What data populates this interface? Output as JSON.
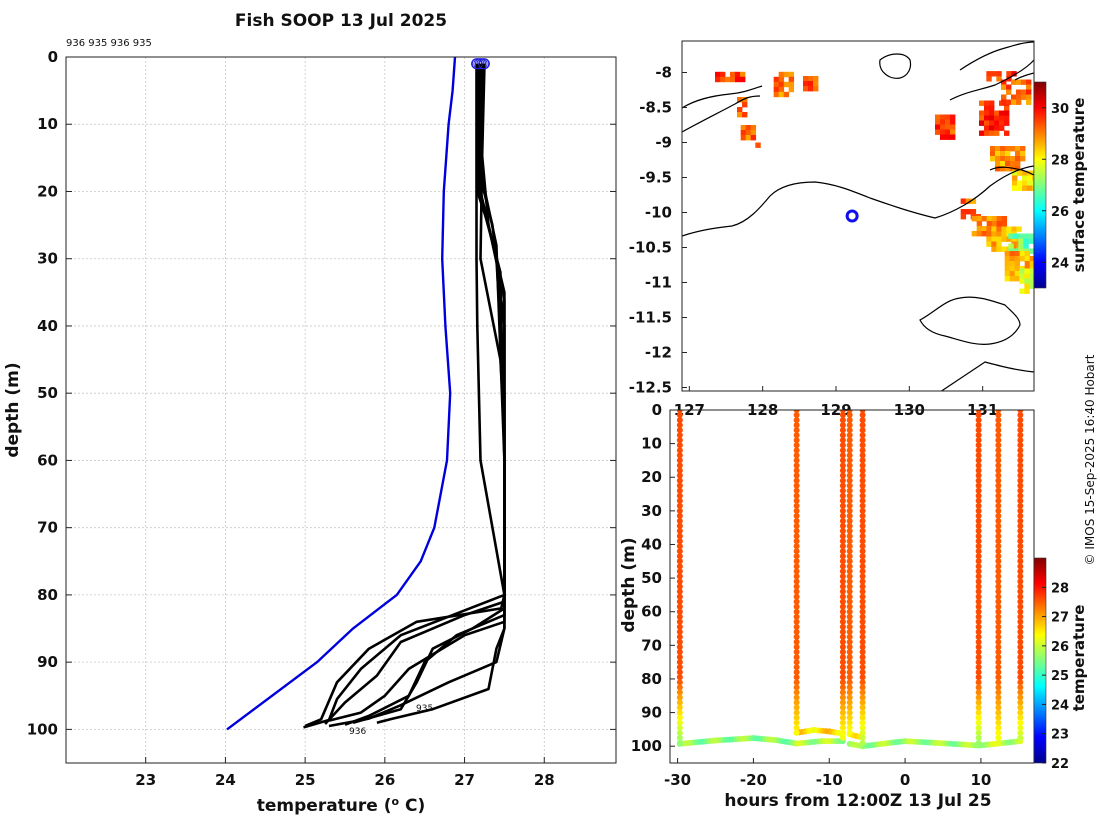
{
  "credit": "© IMOS 15-Sep-2025 16:40 Hobart",
  "chart_data": [
    {
      "id": "profile",
      "type": "line",
      "title": "Fish SOOP 13 Jul 2025",
      "header_ids": "936 935 936 935",
      "xlabel": "temperature (° C)",
      "xlabel_pre": "temperature (",
      "xlabel_sup": "o",
      "xlabel_post": " C)",
      "ylabel": "depth (m)",
      "xlim": [
        22,
        28.9
      ],
      "ylim": [
        0,
        105
      ],
      "xticks": [
        23,
        24,
        25,
        26,
        27,
        28
      ],
      "yticks": [
        0,
        10,
        20,
        30,
        40,
        50,
        60,
        70,
        80,
        90,
        100
      ],
      "grid": true,
      "climatology": {
        "name": "climatology",
        "color": "#0000dd",
        "points": [
          [
            26.88,
            0
          ],
          [
            26.85,
            5
          ],
          [
            26.8,
            10
          ],
          [
            26.74,
            20
          ],
          [
            26.72,
            30
          ],
          [
            26.76,
            40
          ],
          [
            26.82,
            50
          ],
          [
            26.78,
            60
          ],
          [
            26.62,
            70
          ],
          [
            26.45,
            75
          ],
          [
            26.15,
            80
          ],
          [
            25.6,
            85
          ],
          [
            25.15,
            90
          ],
          [
            24.02,
            100
          ]
        ]
      },
      "profiles": [
        {
          "id": "p1",
          "points": [
            [
              27.15,
              1
            ],
            [
              27.15,
              10
            ],
            [
              27.15,
              20
            ],
            [
              27.15,
              30
            ],
            [
              27.16,
              40
            ],
            [
              27.2,
              60
            ],
            [
              27.5,
              80
            ],
            [
              27.46,
              82
            ],
            [
              26.4,
              84
            ],
            [
              25.8,
              88
            ],
            [
              25.4,
              93
            ],
            [
              25.2,
              98.5
            ],
            [
              25.0,
              99.5
            ]
          ]
        },
        {
          "id": "p2",
          "points": [
            [
              27.2,
              1
            ],
            [
              27.2,
              12
            ],
            [
              27.3,
              25
            ],
            [
              27.5,
              35
            ],
            [
              27.5,
              80
            ],
            [
              26.2,
              86
            ],
            [
              25.7,
              91
            ],
            [
              25.4,
              95.5
            ],
            [
              25.3,
              98.6
            ],
            [
              24.98,
              99.7
            ]
          ]
        },
        {
          "id": "p3",
          "points": [
            [
              27.25,
              1
            ],
            [
              27.22,
              15
            ],
            [
              27.2,
              30
            ],
            [
              27.45,
              45
            ],
            [
              27.5,
              55
            ],
            [
              27.5,
              81
            ],
            [
              27.0,
              83
            ],
            [
              26.2,
              87
            ],
            [
              25.9,
              92
            ],
            [
              25.5,
              96
            ],
            [
              25.25,
              99.2
            ]
          ]
        },
        {
          "id": "p4",
          "points": [
            [
              27.18,
              1
            ],
            [
              27.18,
              17
            ],
            [
              27.35,
              25
            ],
            [
              27.5,
              40
            ],
            [
              27.5,
              84
            ],
            [
              27.0,
              86
            ],
            [
              26.3,
              91
            ],
            [
              26.0,
              95
            ],
            [
              25.7,
              97.5
            ],
            [
              25.3,
              98.7
            ]
          ]
        },
        {
          "id": "p5",
          "points": [
            [
              27.22,
              1
            ],
            [
              27.22,
              18
            ],
            [
              27.4,
              28
            ],
            [
              27.5,
              60
            ],
            [
              27.5,
              83
            ],
            [
              26.9,
              86
            ],
            [
              26.5,
              90
            ],
            [
              26.3,
              95
            ],
            [
              25.8,
              98
            ],
            [
              25.5,
              99.3
            ]
          ]
        },
        {
          "id": "p6",
          "points": [
            [
              27.2,
              1
            ],
            [
              27.18,
              20
            ],
            [
              27.45,
              32
            ],
            [
              27.5,
              60
            ],
            [
              27.5,
              82
            ],
            [
              27.1,
              85
            ],
            [
              26.6,
              88
            ],
            [
              26.4,
              93
            ],
            [
              26.2,
              97
            ],
            [
              25.6,
              99
            ]
          ]
        },
        {
          "id": "p7",
          "points": [
            [
              27.16,
              1
            ],
            [
              27.16,
              20
            ],
            [
              27.3,
              25
            ],
            [
              27.5,
              36
            ],
            [
              27.5,
              85
            ],
            [
              27.4,
              88
            ],
            [
              27.3,
              94
            ],
            [
              26.6,
              97
            ],
            [
              26.1,
              98.4
            ],
            [
              25.9,
              99
            ]
          ]
        },
        {
          "id": "p8",
          "points": [
            [
              27.24,
              1
            ],
            [
              27.22,
              10
            ],
            [
              27.2,
              20
            ],
            [
              27.4,
              30
            ],
            [
              27.5,
              50
            ],
            [
              27.5,
              85
            ],
            [
              27.4,
              90
            ],
            [
              26.8,
              93
            ],
            [
              26.2,
              96.4
            ],
            [
              25.8,
              98.4
            ],
            [
              25.3,
              99.5
            ]
          ]
        }
      ],
      "drop_labels": [
        "935",
        "936"
      ]
    },
    {
      "id": "map",
      "type": "heatmap",
      "xlim": [
        126.9,
        131.7
      ],
      "ylim": [
        -12.55,
        -7.55
      ],
      "xticks": [
        127,
        128,
        129,
        130,
        131
      ],
      "xtick_labels": [
        "127",
        "128",
        "129",
        "130",
        "131"
      ],
      "yticks": [
        -8,
        -8.5,
        -9,
        -9.5,
        -10,
        -10.5,
        -11,
        -11.5,
        -12,
        -12.5
      ],
      "ytick_labels": [
        "-8",
        "-8.5",
        "-9",
        "-9.5",
        "-10",
        "-10.5",
        "-11",
        "-11.5",
        "-12",
        "-12.5"
      ],
      "marker": {
        "lon": 129.22,
        "lat": -10.05
      },
      "colorbar": {
        "label": "surface temperature",
        "min": 23,
        "max": 31,
        "ticks": [
          24,
          26,
          28,
          30
        ],
        "tick_labels": [
          "24",
          "26",
          "28",
          "30"
        ]
      },
      "sst_patches": [
        {
          "lon0": 127.35,
          "lat0": -7.99,
          "lon1": 127.75,
          "lat1": -8.12,
          "temp": 29.4
        },
        {
          "lon0": 128.15,
          "lat0": -7.99,
          "lon1": 128.45,
          "lat1": -8.35,
          "temp": 29.0
        },
        {
          "lon0": 128.55,
          "lat0": -8.05,
          "lon1": 128.75,
          "lat1": -8.25,
          "temp": 29.2
        },
        {
          "lon0": 127.65,
          "lat0": -8.35,
          "lon1": 127.8,
          "lat1": -8.65,
          "temp": 29.3
        },
        {
          "lon0": 127.7,
          "lat0": -8.75,
          "lon1": 127.9,
          "lat1": -8.95,
          "temp": 29.0
        },
        {
          "lon0": 127.9,
          "lat0": -9.0,
          "lon1": 128.0,
          "lat1": -9.15,
          "temp": 29.2
        },
        {
          "lon0": 130.95,
          "lat0": -8.4,
          "lon1": 131.35,
          "lat1": -8.9,
          "temp": 29.6
        },
        {
          "lon0": 130.35,
          "lat0": -8.6,
          "lon1": 130.65,
          "lat1": -8.95,
          "temp": 29.4
        },
        {
          "lon0": 131.05,
          "lat0": -7.98,
          "lon1": 131.45,
          "lat1": -8.15,
          "temp": 29.5
        },
        {
          "lon0": 131.25,
          "lat0": -8.1,
          "lon1": 131.65,
          "lat1": -8.45,
          "temp": 29.1
        },
        {
          "lon0": 131.1,
          "lat0": -9.05,
          "lon1": 131.6,
          "lat1": -9.4,
          "temp": 28.7
        },
        {
          "lon0": 131.4,
          "lat0": -9.4,
          "lon1": 131.75,
          "lat1": -9.7,
          "temp": 28.2
        },
        {
          "lon0": 130.7,
          "lat0": -9.8,
          "lon1": 130.95,
          "lat1": -9.9,
          "temp": 29.0
        },
        {
          "lon0": 130.7,
          "lat0": -9.95,
          "lon1": 131.0,
          "lat1": -10.1,
          "temp": 29.2
        },
        {
          "lon0": 130.85,
          "lat0": -10.05,
          "lon1": 131.35,
          "lat1": -10.35,
          "temp": 28.9
        },
        {
          "lon0": 131.05,
          "lat0": -10.2,
          "lon1": 131.55,
          "lat1": -10.55,
          "temp": 28.5
        },
        {
          "lon0": 131.35,
          "lat0": -10.3,
          "lon1": 131.75,
          "lat1": -10.6,
          "temp": 26.8
        },
        {
          "lon0": 131.3,
          "lat0": -10.55,
          "lon1": 131.75,
          "lat1": -10.95,
          "temp": 28.6
        },
        {
          "lon0": 131.5,
          "lat0": -10.8,
          "lon1": 131.75,
          "lat1": -11.15,
          "temp": 27.6
        }
      ]
    },
    {
      "id": "section",
      "type": "scatter",
      "xlabel": "hours from 12:00Z 13 Jul 25",
      "ylabel": "depth (m)",
      "xlim": [
        -31,
        17
      ],
      "ylim": [
        0,
        105
      ],
      "xticks": [
        -30,
        -20,
        -10,
        0,
        10
      ],
      "yticks": [
        0,
        10,
        20,
        30,
        40,
        50,
        60,
        70,
        80,
        90,
        100
      ],
      "colorbar": {
        "label": "temperature",
        "min": 22,
        "max": 29,
        "ticks": [
          22,
          23,
          24,
          25,
          26,
          27,
          28
        ],
        "tick_labels": [
          "22",
          "23",
          "24",
          "25",
          "26",
          "27",
          "28"
        ]
      },
      "casts": [
        {
          "hours": -29.7,
          "top_temp": 27.6,
          "bottom_temp": 25.6,
          "max_depth": 99.3
        },
        {
          "hours": -14.3,
          "top_temp": 27.5,
          "bottom_temp": 26.4,
          "max_depth": 96
        },
        {
          "hours": -8.2,
          "top_temp": 27.6,
          "bottom_temp": 26.2,
          "max_depth": 98.5
        },
        {
          "hours": -7.3,
          "top_temp": 27.5,
          "bottom_temp": 26.3,
          "max_depth": 96.5
        },
        {
          "hours": -5.6,
          "top_temp": 27.6,
          "bottom_temp": 25.8,
          "max_depth": 100
        },
        {
          "hours": 9.7,
          "top_temp": 27.6,
          "bottom_temp": 25.6,
          "max_depth": 99.8
        },
        {
          "hours": 12.3,
          "top_temp": 27.5,
          "bottom_temp": 26.2,
          "max_depth": 99
        },
        {
          "hours": 15.2,
          "top_temp": 27.6,
          "bottom_temp": 25.9,
          "max_depth": 98.5
        }
      ],
      "tows": [
        {
          "points": [
            [
              -29.7,
              99.3
            ],
            [
              -25,
              98.3
            ],
            [
              -20,
              97.6
            ],
            [
              -17,
              98.2
            ],
            [
              -14.3,
              99.2
            ]
          ],
          "temp": 25.6
        },
        {
          "points": [
            [
              -14.3,
              96
            ],
            [
              -12,
              95.2
            ],
            [
              -10,
              95.6
            ],
            [
              -8.2,
              96.3
            ]
          ],
          "temp": 26.6
        },
        {
          "points": [
            [
              -14.3,
              99.2
            ],
            [
              -11,
              98.5
            ],
            [
              -8.2,
              98.5
            ]
          ],
          "temp": 25.8
        },
        {
          "points": [
            [
              -7.3,
              96.5
            ],
            [
              -6.4,
              97
            ],
            [
              -5.6,
              97.4
            ]
          ],
          "temp": 26.3
        },
        {
          "points": [
            [
              -7.3,
              99.3
            ],
            [
              -5.6,
              100
            ]
          ],
          "temp": 25.6
        },
        {
          "points": [
            [
              -5.6,
              100
            ],
            [
              -2,
              99
            ],
            [
              0,
              98.5
            ],
            [
              4,
              99
            ],
            [
              9.7,
              99.8
            ]
          ],
          "temp": 25.7
        },
        {
          "points": [
            [
              9.7,
              99.8
            ],
            [
              12.3,
              99.2
            ],
            [
              15.2,
              98.5
            ]
          ],
          "temp": 25.9
        }
      ]
    }
  ]
}
